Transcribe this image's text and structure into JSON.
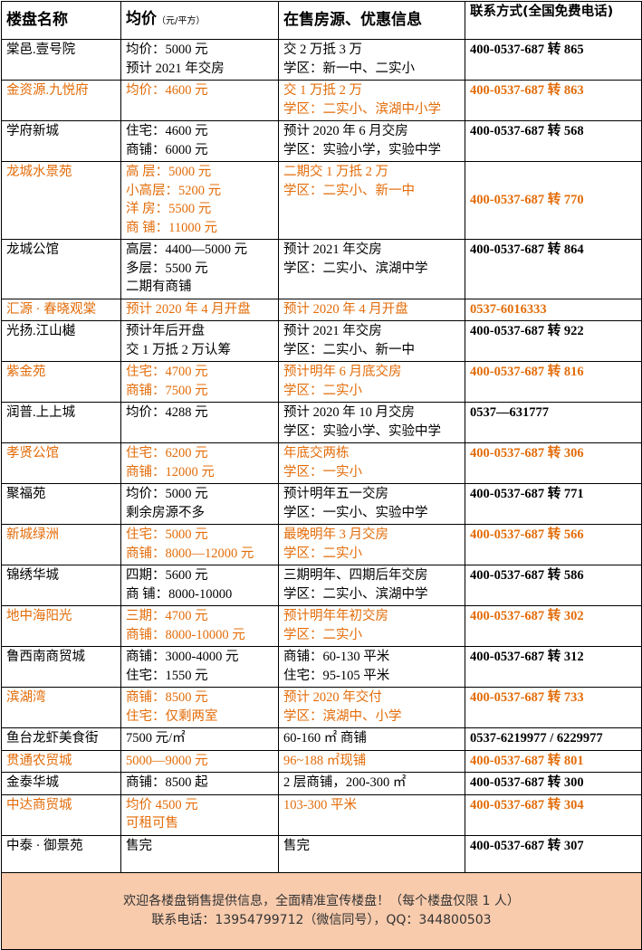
{
  "table": {
    "header": {
      "name": "楼盘名称",
      "price": "均价",
      "price_unit": "（元/平方）",
      "info": "在售房源、优惠信息",
      "contact": "联系方式(全国免费电话)"
    },
    "rows": [
      {
        "name": "棠邑.壹号院",
        "price": [
          "均价：5000 元",
          "预计 2021 年交房"
        ],
        "info": [
          "交 2 万抵 3 万",
          "学区：新一中、二实小"
        ],
        "contact": "400-0537-687 转 865",
        "highlight": false
      },
      {
        "name": "金资源.九悦府",
        "price": [
          "均价：4600 元"
        ],
        "info": [
          "交 1 万抵 2 万",
          "学区：二实小、滨湖中小学"
        ],
        "contact": "400-0537-687 转 863",
        "highlight": true
      },
      {
        "name": "学府新城",
        "price": [
          "住宅：4600 元",
          "商铺：6000 元"
        ],
        "info": [
          "预计 2020 年 6 月交房",
          "学区：实验小学，实验中学"
        ],
        "contact": "400-0537-687 转 568",
        "highlight": false
      },
      {
        "name": "龙城水景苑",
        "price": [
          "高 层：5000 元",
          "小高层：5200 元",
          "洋 房：5500 元",
          "商 铺：11000 元"
        ],
        "info": [
          "二期交 1 万抵 2 万",
          "学区：二实小、新一中"
        ],
        "contact": "400-0537-687 转 770",
        "highlight": true
      },
      {
        "name": "龙城公馆",
        "price": [
          "高层：4400—5000 元",
          "多层：5500 元",
          "二期有商铺"
        ],
        "info": [
          "预计 2021 年交房",
          "学区：二实小、滨湖中学"
        ],
        "contact": "400-0537-687 转 864",
        "highlight": false
      },
      {
        "name": "汇源 · 春晓观棠",
        "price": [
          "预计 2020 年 4 月开盘"
        ],
        "info": [
          "预计 2020 年 4 月开盘"
        ],
        "contact": "0537-6016333",
        "highlight": true
      },
      {
        "name": "光扬.江山樾",
        "price": [
          "预计年后开盘",
          "交 1 万抵 2 万认筹"
        ],
        "info": [
          "预计 2021 年交房",
          "学区：二实小、新一中"
        ],
        "contact": "400-0537-687 转 922",
        "highlight": false
      },
      {
        "name": "紫金苑",
        "price": [
          "住宅：4700 元",
          "商铺：7500 元"
        ],
        "info": [
          "预计明年 6 月底交房",
          "学区：二实小"
        ],
        "contact": "400-0537-687 转 816",
        "highlight": true
      },
      {
        "name": "润普.上上城",
        "price": [
          "均价：4288 元"
        ],
        "info": [
          "预计 2020 年 10 月交房",
          "学区：实验小学、实验中学"
        ],
        "contact": "0537—631777",
        "highlight": false
      },
      {
        "name": "孝贤公馆",
        "price": [
          "住宅：6200 元",
          "商铺：12000 元"
        ],
        "info": [
          "年底交两栋",
          "学区：一实小"
        ],
        "contact": "400-0537-687 转 306",
        "highlight": true
      },
      {
        "name": "聚福苑",
        "price": [
          "均价：5000 元",
          "剩余房源不多"
        ],
        "info": [
          "预计明年五一交房",
          "学区：一实小、实验中学"
        ],
        "contact": "400-0537-687 转 771",
        "highlight": false
      },
      {
        "name": "新城绿洲",
        "price": [
          "住宅：5000 元",
          "商铺：8000—12000 元"
        ],
        "info": [
          "最晚明年 3 月交房",
          "学区：二实小"
        ],
        "contact": "400-0537-687 转 566",
        "highlight": true
      },
      {
        "name": "锦绣华城",
        "price": [
          "四期：5600 元",
          "商 铺：8000-10000"
        ],
        "info": [
          "三期明年、四期后年交房",
          "学区：二实小、滨湖中学"
        ],
        "contact": "400-0537-687 转 586",
        "highlight": false
      },
      {
        "name": "地中海阳光",
        "price": [
          "三期：4700 元",
          "商铺：8000-10000 元"
        ],
        "info": [
          "预计明年年初交房",
          "学区：二实小"
        ],
        "contact": "400-0537-687 转 302",
        "highlight": true
      },
      {
        "name": "鲁西南商贸城",
        "price": [
          "商铺：3000-4000 元",
          "住宅：1550 元"
        ],
        "info": [
          "商铺：60-130 平米",
          "住宅：95-105 平米"
        ],
        "contact": "400-0537-687 转 312",
        "highlight": false
      },
      {
        "name": "滨湖湾",
        "price": [
          "商铺：8500 元",
          "住宅：仅剩两室"
        ],
        "info": [
          "预计 2020 年交付",
          "学区：滨湖中、小学"
        ],
        "contact": "400-0537-687 转 733",
        "highlight": true
      },
      {
        "name": "鱼台龙虾美食街",
        "price": [
          "7500 元/㎡"
        ],
        "info": [
          "60-160 ㎡ 商铺"
        ],
        "contact": "0537-6219977 / 6229977",
        "highlight": false
      },
      {
        "name": "贯通农贸城",
        "price": [
          "5000—9000 元"
        ],
        "info": [
          "96~188 ㎡现铺"
        ],
        "contact": "400-0537-687 转 801",
        "highlight": true
      },
      {
        "name": "金泰华城",
        "price": [
          "商铺：8500 起"
        ],
        "info": [
          "2 层商铺，200-300 ㎡"
        ],
        "contact": "400-0537-687 转 300",
        "highlight": false
      },
      {
        "name": "中达商贸城",
        "price": [
          "均价 4500 元",
          "可租可售"
        ],
        "info": [
          "103-300 平米"
        ],
        "contact": "400-0537-687 转 304",
        "highlight": true
      },
      {
        "name": "中泰 · 御景苑",
        "price": [
          "售完"
        ],
        "info": [
          "售完"
        ],
        "contact": "400-0537-687 转 307",
        "highlight": false
      }
    ],
    "footer": [
      "欢迎各楼盘销售提供信息，全面精准宣传楼盘！（每个楼盘仅限 1 人）",
      "联系电话：13954799712（微信同号），QQ：344800503"
    ]
  }
}
